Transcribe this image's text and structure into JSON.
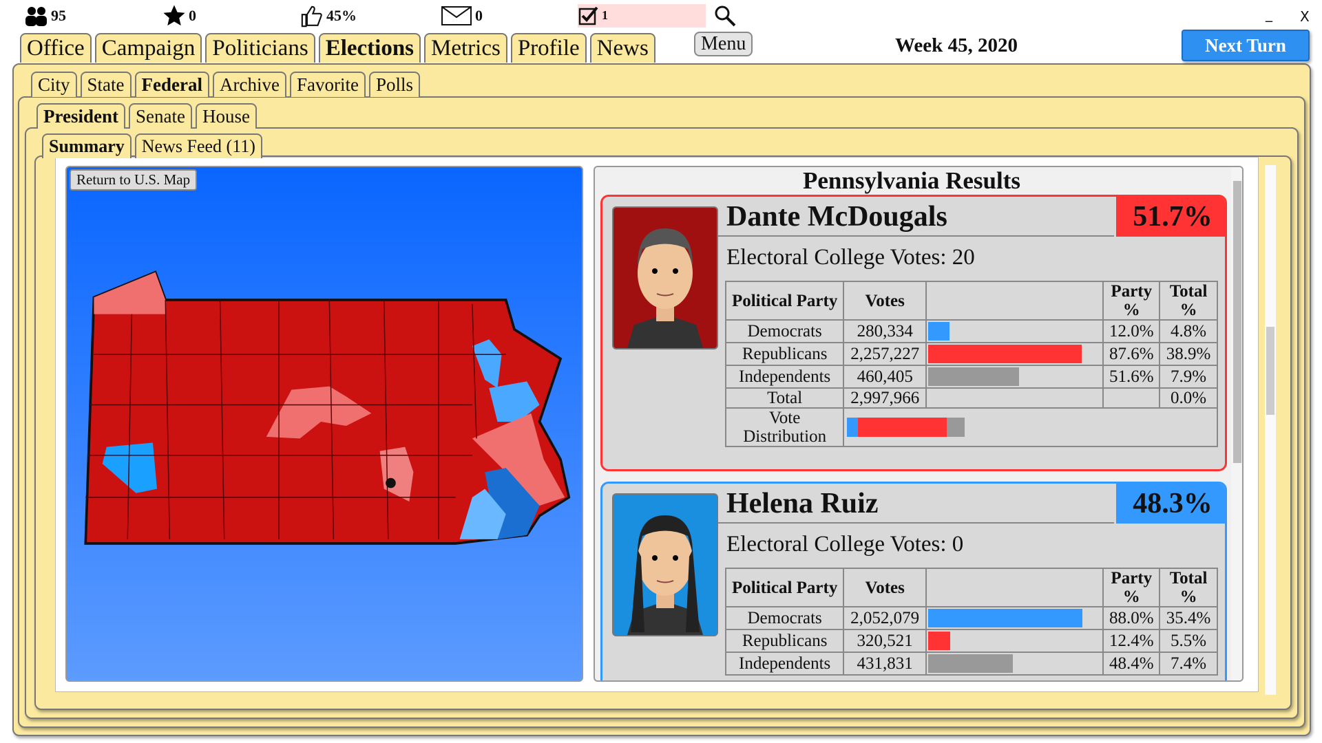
{
  "top_bar": {
    "followers": "95",
    "stars": "0",
    "approval": "45%",
    "messages": "0",
    "tasks": "1"
  },
  "window": {
    "minimize": "_",
    "close": "X"
  },
  "nav_tabs": [
    "Office",
    "Campaign",
    "Politicians",
    "Elections",
    "Metrics",
    "Profile",
    "News"
  ],
  "menu": "Menu",
  "week": "Week 45, 2020",
  "next_turn": "Next Turn",
  "level_tabs": [
    "City",
    "State",
    "Federal",
    "Archive",
    "Favorite",
    "Polls"
  ],
  "office_tabs": [
    "President",
    "Senate",
    "House"
  ],
  "view_tabs": [
    "Summary",
    "News Feed (11)"
  ],
  "map": {
    "return_button": "Return to U.S. Map"
  },
  "results": {
    "title": "Pennsylvania Results",
    "headers": [
      "Political Party",
      "Votes",
      "Party %",
      "Total %"
    ],
    "candidates": [
      {
        "name": "Dante McDougals",
        "percent": "51.7%",
        "electoral": "Electoral College Votes: 20",
        "rows": [
          [
            "Democrats",
            "280,334",
            "12.0%",
            "4.8%"
          ],
          [
            "Republicans",
            "2,257,227",
            "87.6%",
            "38.9%"
          ],
          [
            "Independents",
            "460,405",
            "51.6%",
            "7.9%"
          ]
        ],
        "total": [
          "Total",
          "2,997,966",
          "0.0%"
        ],
        "distribution_label": "Vote Distribution"
      },
      {
        "name": "Helena Ruiz",
        "percent": "48.3%",
        "electoral": "Electoral College Votes: 0",
        "rows": [
          [
            "Democrats",
            "2,052,079",
            "88.0%",
            "35.4%"
          ],
          [
            "Republicans",
            "320,521",
            "12.4%",
            "5.5%"
          ],
          [
            "Independents",
            "431,831",
            "48.4%",
            "7.4%"
          ]
        ]
      }
    ]
  }
}
